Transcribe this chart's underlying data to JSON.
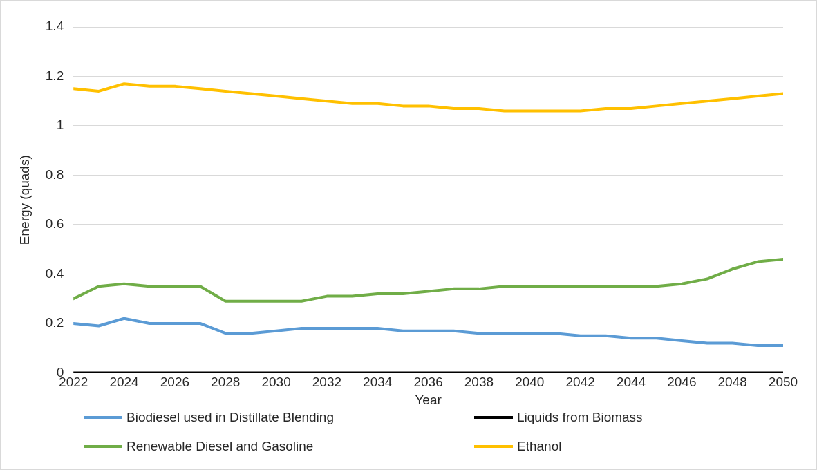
{
  "chart_data": {
    "type": "line",
    "xlabel": "Year",
    "ylabel": "Energy (quads)",
    "x": [
      2022,
      2023,
      2024,
      2025,
      2026,
      2027,
      2028,
      2029,
      2030,
      2031,
      2032,
      2033,
      2034,
      2035,
      2036,
      2037,
      2038,
      2039,
      2040,
      2041,
      2042,
      2043,
      2044,
      2045,
      2046,
      2047,
      2048,
      2049,
      2050
    ],
    "series": [
      {
        "name": "Biodiesel used in Distillate Blending",
        "color": "#5b9bd5",
        "values": [
          0.2,
          0.19,
          0.22,
          0.2,
          0.2,
          0.2,
          0.16,
          0.16,
          0.17,
          0.18,
          0.18,
          0.18,
          0.18,
          0.17,
          0.17,
          0.17,
          0.16,
          0.16,
          0.16,
          0.16,
          0.15,
          0.15,
          0.14,
          0.14,
          0.13,
          0.12,
          0.12,
          0.11,
          0.11
        ]
      },
      {
        "name": "Liquids from Biomass",
        "color": "#000000",
        "values": [
          0,
          0,
          0,
          0,
          0,
          0,
          0,
          0,
          0,
          0,
          0,
          0,
          0,
          0,
          0,
          0,
          0,
          0,
          0,
          0,
          0,
          0,
          0,
          0,
          0,
          0,
          0,
          0,
          0
        ]
      },
      {
        "name": "Renewable Diesel and Gasoline",
        "color": "#70ad47",
        "values": [
          0.3,
          0.35,
          0.36,
          0.35,
          0.35,
          0.35,
          0.29,
          0.29,
          0.29,
          0.29,
          0.31,
          0.31,
          0.32,
          0.32,
          0.33,
          0.34,
          0.34,
          0.35,
          0.35,
          0.35,
          0.35,
          0.35,
          0.35,
          0.35,
          0.36,
          0.38,
          0.42,
          0.45,
          0.46
        ]
      },
      {
        "name": "Ethanol",
        "color": "#ffc000",
        "values": [
          1.15,
          1.14,
          1.17,
          1.16,
          1.16,
          1.15,
          1.14,
          1.13,
          1.12,
          1.11,
          1.1,
          1.09,
          1.09,
          1.08,
          1.08,
          1.07,
          1.07,
          1.06,
          1.06,
          1.06,
          1.06,
          1.07,
          1.07,
          1.08,
          1.09,
          1.1,
          1.11,
          1.12,
          1.13
        ]
      }
    ],
    "xlim": [
      2022,
      2050
    ],
    "xticks": [
      2022,
      2024,
      2026,
      2028,
      2030,
      2032,
      2034,
      2036,
      2038,
      2040,
      2042,
      2044,
      2046,
      2048,
      2050
    ],
    "ylim": [
      0,
      1.4
    ],
    "yticks": [
      0,
      0.2,
      0.4,
      0.6,
      0.8,
      1,
      1.2,
      1.4
    ],
    "grid": "y",
    "legend": "bottom",
    "marker": "none",
    "line_style": "solid"
  }
}
